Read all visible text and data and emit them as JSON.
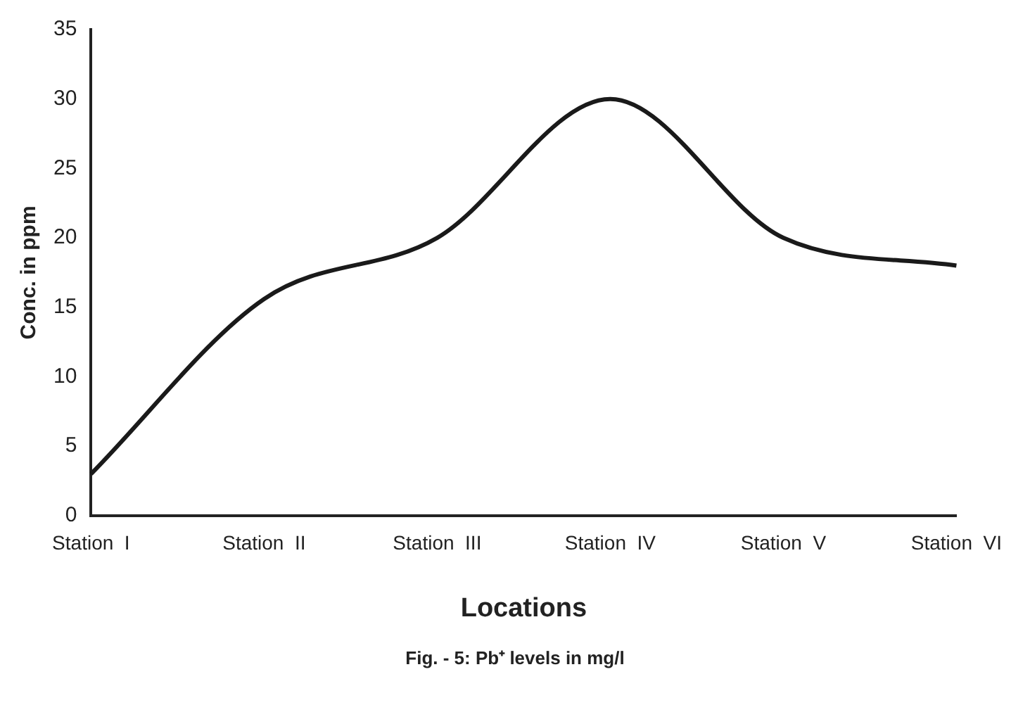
{
  "chart_data": {
    "type": "line",
    "xlabel": "Locations",
    "ylabel": "Conc. in ppm",
    "annotations": [
      "Fig. - 5: Pb⁺ levels in mg/l"
    ],
    "categories": [
      "Station  I",
      "Station  II",
      "Station  III",
      "Station  IV",
      "Station  V",
      "Station  VI"
    ],
    "series": [
      {
        "color": "#1a1a1a",
        "values": [
          3,
          15.6,
          20,
          30,
          20,
          18
        ]
      }
    ],
    "ylim": [
      0,
      35
    ],
    "yticks": [
      0,
      5,
      10,
      15,
      20,
      25,
      30,
      35
    ],
    "grid": false,
    "legend": false,
    "marker": "none",
    "line_style": "solid"
  }
}
